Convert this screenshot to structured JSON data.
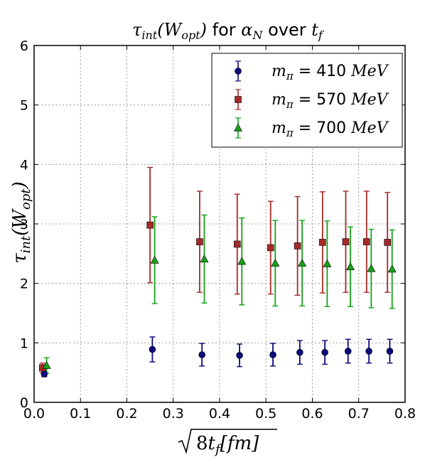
{
  "chart_data": {
    "type": "scatter",
    "title": "τ_int(W_opt) for α_N over t_f",
    "xlabel": "√8t_f [fm]",
    "ylabel": "τ_int(W_opt)",
    "xlim": [
      0.0,
      0.8
    ],
    "ylim": [
      0,
      6
    ],
    "xticks": [
      "0.0",
      "0.1",
      "0.2",
      "0.3",
      "0.4",
      "0.5",
      "0.6",
      "0.7",
      "0.8"
    ],
    "yticks": [
      "0",
      "1",
      "2",
      "3",
      "4",
      "5",
      "6"
    ],
    "grid": true,
    "legend_position": "top-right",
    "series": [
      {
        "name": "m_π = 410 MeV",
        "marker": "circle",
        "color": "#0a0a7a",
        "x": [
          0.022,
          0.255,
          0.362,
          0.443,
          0.515,
          0.573,
          0.627,
          0.677,
          0.722,
          0.767
        ],
        "y": [
          0.48,
          0.89,
          0.8,
          0.79,
          0.8,
          0.84,
          0.84,
          0.86,
          0.86,
          0.86
        ],
        "err": [
          0.05,
          0.21,
          0.19,
          0.19,
          0.19,
          0.2,
          0.2,
          0.2,
          0.2,
          0.2
        ]
      },
      {
        "name": "m_π = 570 MeV",
        "marker": "square",
        "color": "#a52a2a",
        "x": [
          0.018,
          0.25,
          0.357,
          0.438,
          0.51,
          0.568,
          0.622,
          0.672,
          0.717,
          0.762
        ],
        "y": [
          0.58,
          2.98,
          2.7,
          2.66,
          2.6,
          2.63,
          2.69,
          2.7,
          2.7,
          2.69
        ],
        "err": [
          0.08,
          0.97,
          0.85,
          0.84,
          0.78,
          0.83,
          0.85,
          0.85,
          0.85,
          0.84
        ]
      },
      {
        "name": "m_π = 700 MeV",
        "marker": "triangle",
        "color": "#18a018",
        "x": [
          0.027,
          0.26,
          0.367,
          0.448,
          0.52,
          0.578,
          0.632,
          0.682,
          0.727,
          0.772
        ],
        "y": [
          0.62,
          2.39,
          2.41,
          2.37,
          2.34,
          2.34,
          2.33,
          2.28,
          2.25,
          2.24
        ],
        "err": [
          0.13,
          0.73,
          0.74,
          0.73,
          0.72,
          0.72,
          0.72,
          0.67,
          0.66,
          0.66
        ]
      }
    ]
  }
}
